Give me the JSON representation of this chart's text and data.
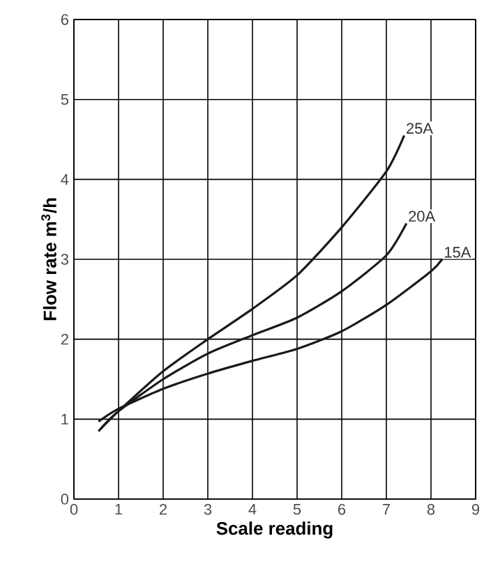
{
  "chart_data": {
    "type": "line",
    "xlabel": "Scale reading",
    "ylabel": "Flow rate m$^{3}$/h",
    "xlim": [
      0,
      9
    ],
    "ylim": [
      0,
      6
    ],
    "xticks": [
      0,
      1,
      2,
      3,
      4,
      5,
      6,
      7,
      8,
      9
    ],
    "yticks": [
      0,
      1,
      2,
      3,
      4,
      5,
      6
    ],
    "grid": true,
    "legend": false,
    "marker": "none",
    "line_style": "solid",
    "series": [
      {
        "name": "25A",
        "color": "#1a1a1a",
        "x": [
          0.55,
          1,
          2,
          3,
          4,
          5,
          6,
          7,
          7.4
        ],
        "values": [
          0.85,
          1.1,
          1.6,
          2.0,
          2.38,
          2.8,
          3.4,
          4.1,
          4.55
        ]
      },
      {
        "name": "20A",
        "color": "#1a1a1a",
        "x": [
          0.6,
          1,
          2,
          3,
          4,
          5,
          6,
          7,
          7.45
        ],
        "values": [
          0.88,
          1.1,
          1.5,
          1.82,
          2.05,
          2.27,
          2.6,
          3.05,
          3.45
        ]
      },
      {
        "name": "15A",
        "color": "#1a1a1a",
        "x": [
          0.55,
          1,
          2,
          3,
          4,
          5,
          6,
          7,
          8,
          8.25
        ],
        "values": [
          0.97,
          1.13,
          1.38,
          1.57,
          1.73,
          1.88,
          2.1,
          2.43,
          2.85,
          3.0
        ]
      }
    ]
  }
}
